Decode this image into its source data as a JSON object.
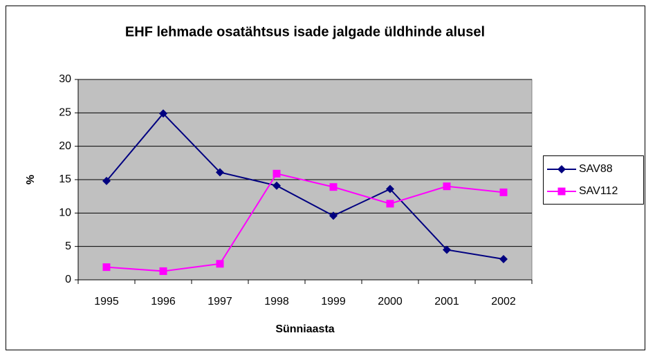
{
  "chart_data": {
    "type": "line",
    "title": "EHF lehmade osatähtsus isade jalgade üldhinde alusel",
    "x_label": "Sünniaasta",
    "y_label": "%",
    "categories": [
      "1995",
      "1996",
      "1997",
      "1998",
      "1999",
      "2000",
      "2001",
      "2002"
    ],
    "series": [
      {
        "name": "SAV88",
        "color": "#000080",
        "marker": "diamond",
        "values": [
          14.8,
          24.9,
          16.1,
          14.1,
          9.6,
          13.6,
          4.5,
          3.1
        ]
      },
      {
        "name": "SAV112",
        "color": "#ff00ff",
        "marker": "square",
        "values": [
          1.9,
          1.3,
          2.4,
          15.9,
          13.9,
          11.4,
          14.0,
          13.1
        ]
      }
    ],
    "ylim": [
      0,
      30
    ],
    "yticks": [
      0,
      5,
      10,
      15,
      20,
      25,
      30
    ],
    "grid": true,
    "legend": "right"
  }
}
